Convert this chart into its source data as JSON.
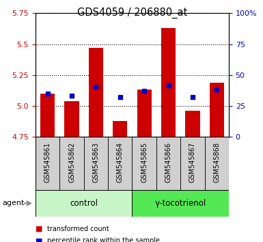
{
  "title": "GDS4059 / 206880_at",
  "samples": [
    "GSM545861",
    "GSM545862",
    "GSM545863",
    "GSM545864",
    "GSM545865",
    "GSM545866",
    "GSM545867",
    "GSM545868"
  ],
  "red_values": [
    5.1,
    5.04,
    5.47,
    4.88,
    5.13,
    5.63,
    4.96,
    5.19
  ],
  "blue_values": [
    5.1,
    5.08,
    5.155,
    5.07,
    5.12,
    5.165,
    5.07,
    5.13
  ],
  "ymin": 4.75,
  "ymax": 5.75,
  "yticks": [
    4.75,
    5.0,
    5.25,
    5.5,
    5.75
  ],
  "right_yticks": [
    0,
    25,
    50,
    75,
    100
  ],
  "right_yticklabels": [
    "0",
    "25",
    "50",
    "75",
    "100%"
  ],
  "groups": [
    {
      "label": "control",
      "indices": [
        0,
        1,
        2,
        3
      ],
      "color": "#c8f5c8"
    },
    {
      "label": "γ-tocotrienol",
      "indices": [
        4,
        5,
        6,
        7
      ],
      "color": "#55e855"
    }
  ],
  "bar_color": "#cc0000",
  "dot_color": "#0000cc",
  "axis_color_left": "#cc0000",
  "axis_color_right": "#0000cc",
  "grid_color": "#000000",
  "bar_width": 0.6,
  "plot_bg_color": "#ffffff",
  "tick_label_bg": "#d0d0d0"
}
